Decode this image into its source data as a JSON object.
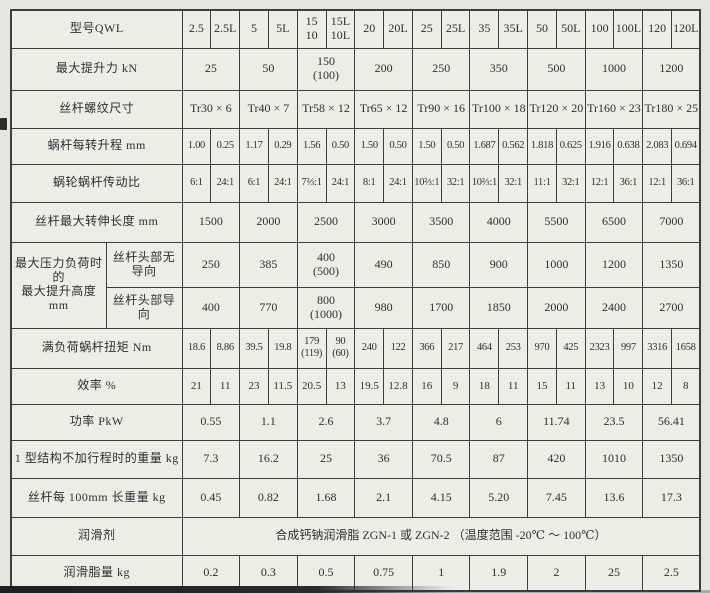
{
  "page": {
    "colors": {
      "page_bg": "#e4e7df",
      "table_bg": "#eceee6",
      "border": "#3d3d44",
      "text": "#2e2e33"
    }
  },
  "table": {
    "label_columns": 2,
    "data_columns": 18,
    "rows": [
      {
        "id": "model",
        "label": "型号QWL",
        "span": 1,
        "cells": [
          "2.5",
          "2.5L",
          "5",
          "5L",
          "15\n10",
          "15L\n10L",
          "20",
          "20L",
          "25",
          "25L",
          "35",
          "35L",
          "50",
          "50L",
          "100",
          "100L",
          "120",
          "120L"
        ]
      },
      {
        "id": "max-lifting-force-kn",
        "label": "最大提升力 kN",
        "span": 2,
        "cells": [
          "25",
          "50",
          "150\n(100)",
          "200",
          "250",
          "350",
          "500",
          "1000",
          "1200"
        ]
      },
      {
        "id": "screw-thread-size",
        "label": "丝杆螺纹尺寸",
        "span": 2,
        "cells": [
          "Tr30 × 6",
          "Tr40 × 7",
          "Tr58 × 12",
          "Tr65 × 12",
          "Tr90 × 16",
          "Tr100 × 18",
          "Tr120 × 20",
          "Tr160 × 23",
          "Tr180 × 25"
        ]
      },
      {
        "id": "lift-per-worm-rev-mm",
        "label": "蜗杆每转升程 mm",
        "span": 1,
        "cells": [
          "1.00",
          "0.25",
          "1.17",
          "0.29",
          "1.56",
          "0.50",
          "1.50",
          "0.50",
          "1.50",
          "0.50",
          "1.687",
          "0.562",
          "1.818",
          "0.625",
          "1.916",
          "0.638",
          "2.083",
          "0.694"
        ]
      },
      {
        "id": "worm-gear-ratio",
        "label": "蜗轮蜗杆传动比",
        "span": 1,
        "cells": [
          "6:1",
          "24:1",
          "6:1",
          "24:1",
          "7⅔:1",
          "24:1",
          "8:1",
          "24:1",
          "10⅔:1",
          "32:1",
          "10⅔:1",
          "32:1",
          "11:1",
          "32:1",
          "12:1",
          "36:1",
          "12:1",
          "36:1"
        ]
      },
      {
        "id": "max-screw-extension-mm",
        "label": "丝杆最大转伸长度 mm",
        "span": 2,
        "cells": [
          "1500",
          "2000",
          "2500",
          "3000",
          "3500",
          "4000",
          "5500",
          "6500",
          "7000"
        ]
      },
      {
        "id": "max-lift-height-no-guide",
        "group_label": "最大压力负荷时的\n最大提升高度 mm",
        "group_rowspan": 2,
        "sublabel": "丝杆头部无导向",
        "span": 2,
        "cells": [
          "250",
          "385",
          "400\n(500)",
          "490",
          "850",
          "900",
          "1000",
          "1200",
          "1350"
        ]
      },
      {
        "id": "max-lift-height-guided",
        "sublabel": "丝杆头部导向",
        "span": 2,
        "cells": [
          "400",
          "770",
          "800\n(1000)",
          "980",
          "1700",
          "1850",
          "2000",
          "2400",
          "2700"
        ]
      },
      {
        "id": "full-load-worm-torque-nm",
        "label": "满负荷蜗杆扭矩 Nm",
        "span": 1,
        "cells": [
          "18.6",
          "8.86",
          "39.5",
          "19.8",
          "179\n(119)",
          "90\n(60)",
          "240",
          "122",
          "366",
          "217",
          "464",
          "253",
          "970",
          "425",
          "2323",
          "997",
          "3316",
          "1658"
        ]
      },
      {
        "id": "efficiency-pct",
        "label": "效率 %",
        "span": 1,
        "cells": [
          "21",
          "11",
          "23",
          "11.5",
          "20.5",
          "13",
          "19.5",
          "12.8",
          "16",
          "9",
          "18",
          "11",
          "15",
          "11",
          "13",
          "10",
          "12",
          "8"
        ]
      },
      {
        "id": "power-pkw",
        "label": "功率 PkW",
        "span": 2,
        "cells": [
          "0.55",
          "1.1",
          "2.6",
          "3.7",
          "4.8",
          "6",
          "11.74",
          "23.5",
          "56.41"
        ]
      },
      {
        "id": "weight-type1-no-stroke-kg",
        "label": "1 型结构不加行程时的重量 kg",
        "span": 2,
        "cells": [
          "7.3",
          "16.2",
          "25",
          "36",
          "70.5",
          "87",
          "420",
          "1010",
          "1350"
        ]
      },
      {
        "id": "screw-weight-per-100mm-kg",
        "label": "丝杆每 100mm 长重量 kg",
        "span": 2,
        "cells": [
          "0.45",
          "0.82",
          "1.68",
          "2.1",
          "4.15",
          "5.20",
          "7.45",
          "13.6",
          "17.3"
        ]
      },
      {
        "id": "lubricant",
        "label": "润滑剂",
        "span": 18,
        "cells": [
          "合成钙钠润滑脂 ZGN-1 或 ZGN-2 （温度范围 -20℃ ～ 100℃）"
        ]
      },
      {
        "id": "grease-amount-kg",
        "label": "润滑脂量 kg",
        "span": 2,
        "cells": [
          "0.2",
          "0.3",
          "0.5",
          "0.75",
          "1",
          "1.9",
          "2",
          "25",
          "2.5"
        ]
      }
    ]
  }
}
